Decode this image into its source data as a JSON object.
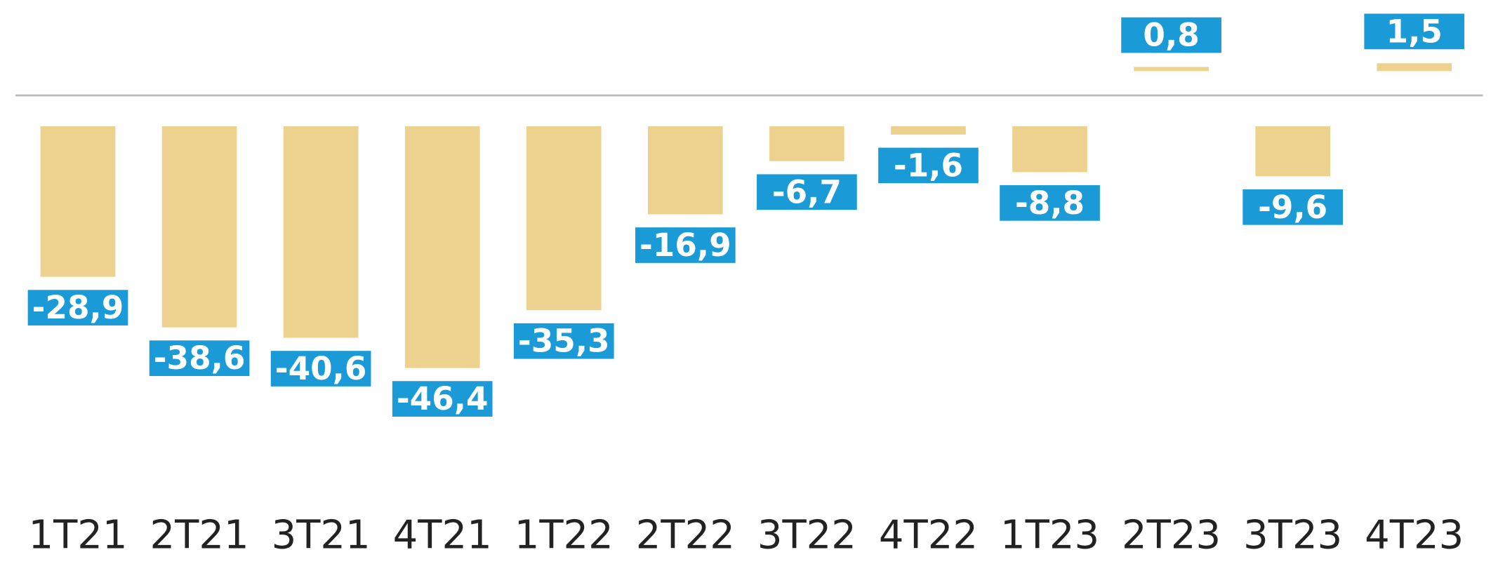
{
  "chart_data": {
    "type": "bar",
    "categories": [
      "1T21",
      "2T21",
      "3T21",
      "4T21",
      "1T22",
      "2T22",
      "3T22",
      "4T22",
      "1T23",
      "2T23",
      "3T23",
      "4T23"
    ],
    "values": [
      -28.9,
      -38.6,
      -40.6,
      -46.4,
      -35.3,
      -16.9,
      -6.7,
      -1.6,
      -8.8,
      0.8,
      -9.6,
      1.5
    ],
    "value_labels": [
      "-28,9",
      "-38,6",
      "-40,6",
      "-46,4",
      "-35,3",
      "-16,9",
      "-6,7",
      "-1,6",
      "-8,8",
      "0,8",
      "-9,6",
      "1,5"
    ],
    "color": "#edd18f",
    "label_color": "#1a9ad6"
  }
}
